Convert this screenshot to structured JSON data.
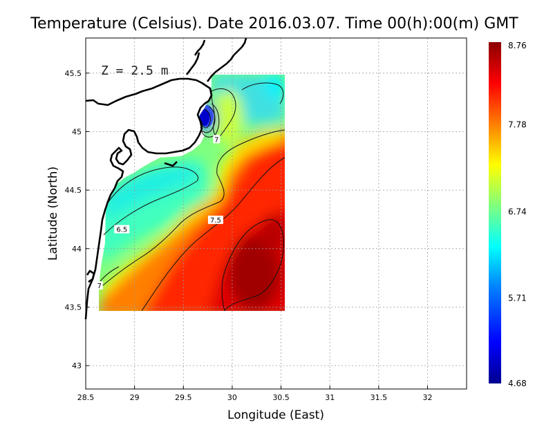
{
  "title": "Temperature (Celsius). Date 2016.03.07. Time 00(h):00(m) GMT",
  "xlabel": "Longitude (East)",
  "ylabel": "Latitude (North)",
  "annotation": "Z = 2.5 m",
  "colors": {
    "scale": [
      "#00008f",
      "#0000ff",
      "#007fff",
      "#00ffff",
      "#7fff7f",
      "#ffff00",
      "#ff7f00",
      "#ff0000",
      "#8b0000"
    ],
    "land": "#ffffff",
    "coastline": "#000000"
  },
  "chart_data": {
    "type": "heatmap",
    "variable": "Temperature (Celsius)",
    "depth_m": 2.5,
    "xlim": [
      28.5,
      32.4
    ],
    "ylim": [
      42.8,
      45.8
    ],
    "x_ticks": [
      28.5,
      29,
      29.5,
      30,
      30.5,
      31,
      31.5,
      32
    ],
    "y_ticks": [
      43,
      43.5,
      44,
      44.5,
      45,
      45.5
    ],
    "grid": true,
    "colorbar": {
      "min": 4.68,
      "max": 8.76,
      "ticks": [
        8.76,
        7.78,
        6.74,
        5.71,
        4.68
      ],
      "position": "right"
    },
    "contour_labels": [
      {
        "text": "7",
        "lon": 29.84,
        "lat": 44.93
      },
      {
        "text": "7.5",
        "lon": 29.83,
        "lat": 44.24
      },
      {
        "text": "6.5",
        "lon": 28.87,
        "lat": 44.16
      },
      {
        "text": "7",
        "lon": 28.64,
        "lat": 43.68
      }
    ],
    "field_samples": [
      {
        "lon": 29.7,
        "lat": 45.1,
        "value": 4.7
      },
      {
        "lon": 29.9,
        "lat": 45.3,
        "value": 6.3
      },
      {
        "lon": 30.3,
        "lat": 45.45,
        "value": 6.1
      },
      {
        "lon": 29.3,
        "lat": 44.7,
        "value": 6.5
      },
      {
        "lon": 28.9,
        "lat": 44.4,
        "value": 6.4
      },
      {
        "lon": 30.1,
        "lat": 44.8,
        "value": 7.9
      },
      {
        "lon": 30.3,
        "lat": 44.5,
        "value": 8.3
      },
      {
        "lon": 30.2,
        "lat": 43.8,
        "value": 8.7
      },
      {
        "lon": 29.5,
        "lat": 43.7,
        "value": 8.0
      }
    ]
  }
}
